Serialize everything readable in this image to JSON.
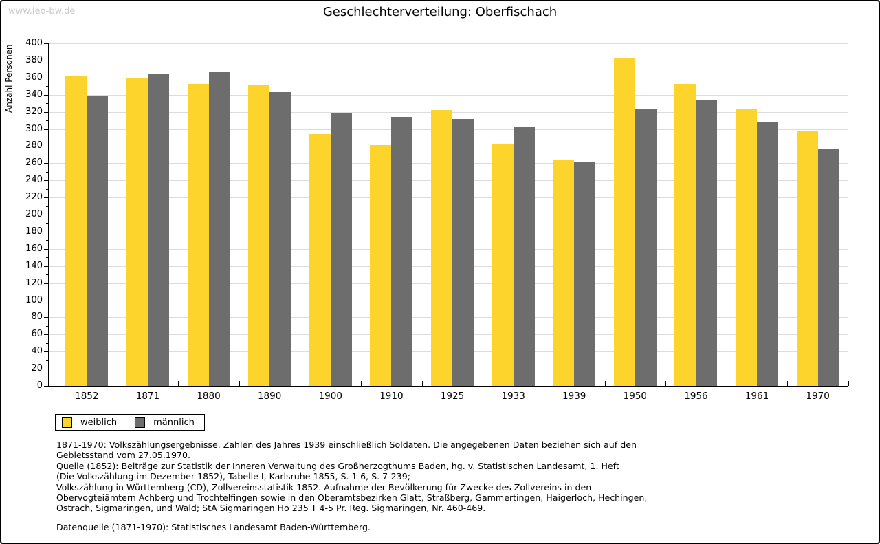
{
  "header": {
    "watermark": "www.leo-bw.de",
    "title": "Geschlechterverteilung: Oberfischach"
  },
  "chart_data": {
    "type": "bar",
    "title": "Geschlechterverteilung: Oberfischach",
    "ylabel": "Anzahl Personen",
    "xlabel": "",
    "ylim": [
      0,
      400
    ],
    "y_major_step": 20,
    "y_minor_step": 10,
    "grid": true,
    "legend_position": "bottom-left",
    "grid_color": "#dcdcdc",
    "categories": [
      "1852",
      "1871",
      "1880",
      "1890",
      "1900",
      "1910",
      "1925",
      "1933",
      "1939",
      "1950",
      "1956",
      "1961",
      "1970"
    ],
    "series": [
      {
        "name": "weiblich",
        "color": "#FCD42C",
        "values": [
          362,
          360,
          353,
          351,
          294,
          281,
          322,
          282,
          264,
          382,
          353,
          324,
          298
        ]
      },
      {
        "name": "männlich",
        "color": "#6D6D6D",
        "values": [
          338,
          364,
          366,
          343,
          318,
          314,
          312,
          302,
          261,
          323,
          333,
          308,
          277
        ]
      }
    ]
  },
  "footnotes": {
    "lines": [
      "1871-1970: Volkszählungsergebnisse. Zahlen des Jahres 1939 einschließlich Soldaten. Die angegebenen Daten beziehen sich auf den",
      "Gebietsstand vom 27.05.1970.",
      "Quelle (1852): Beiträge zur Statistik der Inneren Verwaltung des Großherzogthums Baden, hg. v. Statistischen Landesamt, 1. Heft",
      "(Die Volkszählung im Dezember 1852), Tabelle I, Karlsruhe 1855, S. 1-6, S. 7-239;",
      "Volkszählung in Württemberg (CD), Zollvereinsstatistik 1852. Aufnahme der Bevölkerung für Zwecke des Zollvereins in den",
      "Obervogteiämtern Achberg und Trochtelfingen sowie in den Oberamtsbezirken Glatt, Straßberg, Gammertingen, Haigerloch, Hechingen,",
      "Ostrach, Sigmaringen, und Wald; StA Sigmaringen Ho 235 T 4-5 Pr. Reg. Sigmaringen, Nr. 460-469."
    ],
    "datenquelle": "Datenquelle (1871-1970): Statistisches Landesamt Baden-Württemberg."
  }
}
